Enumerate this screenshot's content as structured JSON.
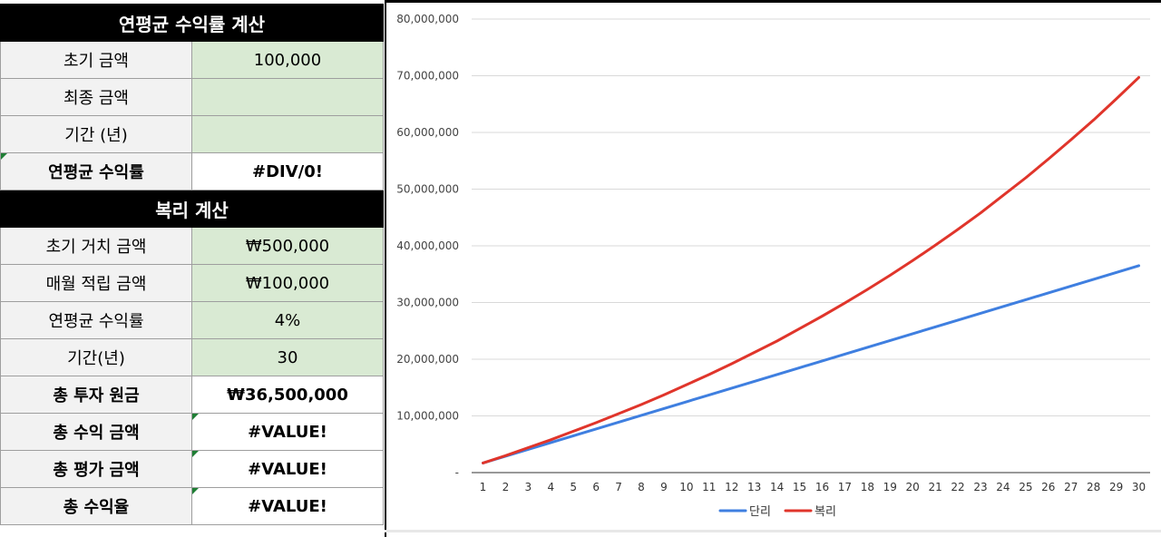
{
  "annual_return_section": {
    "title": "연평균 수익률 계산",
    "rows": [
      {
        "label": "초기 금액",
        "value": "100,000"
      },
      {
        "label": "최종 금액",
        "value": ""
      },
      {
        "label": "기간 (년)",
        "value": ""
      },
      {
        "label": "연평균 수익률",
        "value": "#DIV/0!"
      }
    ]
  },
  "compound_section": {
    "title": "복리 계산",
    "rows": [
      {
        "label": "초기 거치 금액",
        "value": "₩500,000"
      },
      {
        "label": "매월 적립 금액",
        "value": "₩100,000"
      },
      {
        "label": "연평균 수익률",
        "value": "4%"
      },
      {
        "label": "기간(년)",
        "value": "30"
      },
      {
        "label": "총 투자 원금",
        "value": "₩36,500,000"
      },
      {
        "label": "총 수익 금액",
        "value": "#VALUE!"
      },
      {
        "label": "총 평가 금액",
        "value": "#VALUE!"
      },
      {
        "label": "총 수익율",
        "value": "#VALUE!"
      }
    ]
  },
  "chart_data": {
    "type": "line",
    "x": [
      1,
      2,
      3,
      4,
      5,
      6,
      7,
      8,
      9,
      10,
      11,
      12,
      13,
      14,
      15,
      16,
      17,
      18,
      19,
      20,
      21,
      22,
      23,
      24,
      25,
      26,
      27,
      28,
      29,
      30
    ],
    "y_ticks": [
      "-",
      "10,000,000",
      "20,000,000",
      "30,000,000",
      "40,000,000",
      "50,000,000",
      "60,000,000",
      "70,000,000",
      "80,000,000"
    ],
    "ylim": [
      0,
      80000000
    ],
    "grid": true,
    "legend_position": "bottom",
    "series": [
      {
        "name": "단리",
        "color": "#3f7fe0",
        "values": [
          1700000,
          2900000,
          4100000,
          5300000,
          6500000,
          7700000,
          8900000,
          10100000,
          11300000,
          12500000,
          13700000,
          14900000,
          16100000,
          17300000,
          18500000,
          19700000,
          20900000,
          22100000,
          23300000,
          24500000,
          25700000,
          26900000,
          28100000,
          29300000,
          30500000,
          31700000,
          32900000,
          34100000,
          35300000,
          36500000
        ]
      },
      {
        "name": "복리",
        "color": "#e0352b",
        "values": [
          1700000,
          3000000,
          4400000,
          5800000,
          7300000,
          8800000,
          10400000,
          12000000,
          13700000,
          15500000,
          17300000,
          19200000,
          21200000,
          23200000,
          25400000,
          27600000,
          29900000,
          32300000,
          34800000,
          37400000,
          40100000,
          42900000,
          45800000,
          48900000,
          52000000,
          55300000,
          58700000,
          62200000,
          65900000,
          69700000
        ]
      }
    ]
  }
}
